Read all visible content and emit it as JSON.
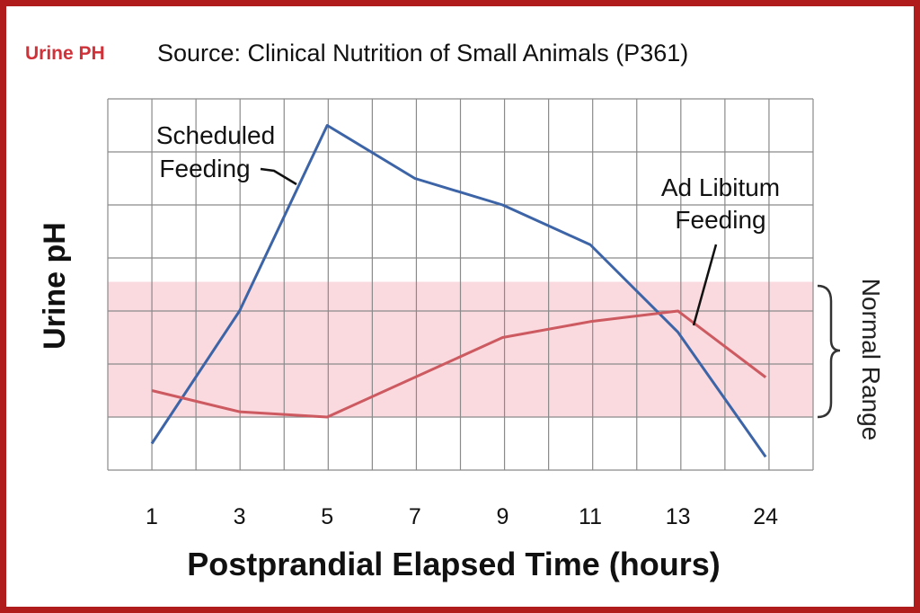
{
  "header": {
    "tag": "Urine PH",
    "source": "Source: Clinical Nutrition of Small Animals (P361)"
  },
  "colors": {
    "frame": "#b01c1c",
    "tag": "#d0323a",
    "scheduled": "#3c64a6",
    "ad_libitum": "#cc5a60",
    "normal_band": "#fadadf",
    "grid": "#8a8a8a"
  },
  "chart_data": {
    "type": "line",
    "xlabel": "Postprandial Elapsed Time (hours)",
    "ylabel": "Urine pH",
    "categories": [
      "1",
      "3",
      "5",
      "7",
      "9",
      "11",
      "13",
      "24"
    ],
    "ylim": [
      0,
      7
    ],
    "grid": true,
    "y_tick_labels": false,
    "series": [
      {
        "name": "Scheduled Feeding",
        "label_lines": [
          "Scheduled",
          "Feeding"
        ],
        "values": [
          0.5,
          3.0,
          6.5,
          5.5,
          5.0,
          4.25,
          2.6,
          0.25
        ]
      },
      {
        "name": "Ad Libitum Feeding",
        "label_lines": [
          "Ad Libitum",
          "Feeding"
        ],
        "values": [
          1.5,
          1.1,
          1.0,
          1.75,
          2.5,
          2.8,
          3.0,
          1.75
        ]
      }
    ],
    "normal_range": {
      "label": "Normal Range",
      "from": 1.0,
      "to": 3.55
    }
  }
}
